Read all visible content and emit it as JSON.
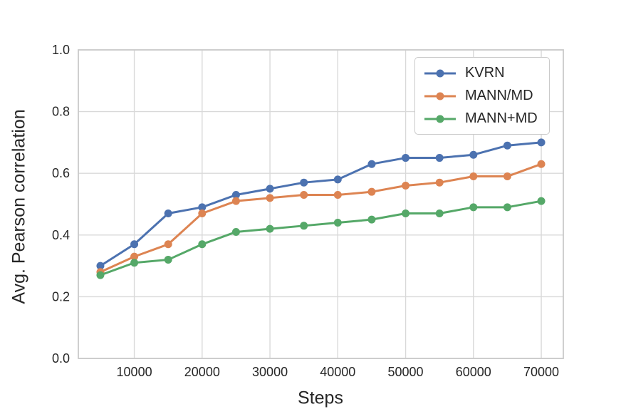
{
  "figure": {
    "background": "#ffffff"
  },
  "chart_data": {
    "type": "line",
    "title": "",
    "xlabel": "Steps",
    "ylabel": "Avg. Pearson correlation",
    "x": [
      5000,
      10000,
      15000,
      20000,
      25000,
      30000,
      35000,
      40000,
      45000,
      50000,
      55000,
      60000,
      65000,
      70000
    ],
    "series": [
      {
        "name": "KVRN",
        "color": "#4C72B0",
        "values": [
          0.3,
          0.37,
          0.47,
          0.49,
          0.53,
          0.55,
          0.57,
          0.58,
          0.63,
          0.65,
          0.65,
          0.66,
          0.69,
          0.7
        ]
      },
      {
        "name": "MANN/MD",
        "color": "#DD8452",
        "values": [
          0.28,
          0.33,
          0.37,
          0.47,
          0.51,
          0.52,
          0.53,
          0.53,
          0.54,
          0.56,
          0.57,
          0.59,
          0.59,
          0.63
        ]
      },
      {
        "name": "MANN+MD",
        "color": "#55A868",
        "values": [
          0.27,
          0.31,
          0.32,
          0.37,
          0.41,
          0.42,
          0.43,
          0.44,
          0.45,
          0.47,
          0.47,
          0.49,
          0.49,
          0.51
        ]
      }
    ],
    "xlim": [
      1750,
      73250
    ],
    "ylim": [
      0,
      1
    ],
    "xticks": [
      10000,
      20000,
      30000,
      40000,
      50000,
      60000,
      70000
    ],
    "xtick_labels": [
      "10000",
      "20000",
      "30000",
      "40000",
      "50000",
      "60000",
      "70000"
    ],
    "yticks": [
      0.0,
      0.2,
      0.4,
      0.6,
      0.8,
      1.0
    ],
    "ytick_labels": [
      "0.0",
      "0.2",
      "0.4",
      "0.6",
      "0.8",
      "1.0"
    ],
    "grid": true,
    "legend_position": "upper right",
    "style": {
      "grid_color": "#d9d9d9",
      "spine_color": "#cacaca",
      "text_color": "#262626",
      "tick_font_size": 18,
      "marker_radius": 5.5,
      "line_width": 3
    }
  }
}
